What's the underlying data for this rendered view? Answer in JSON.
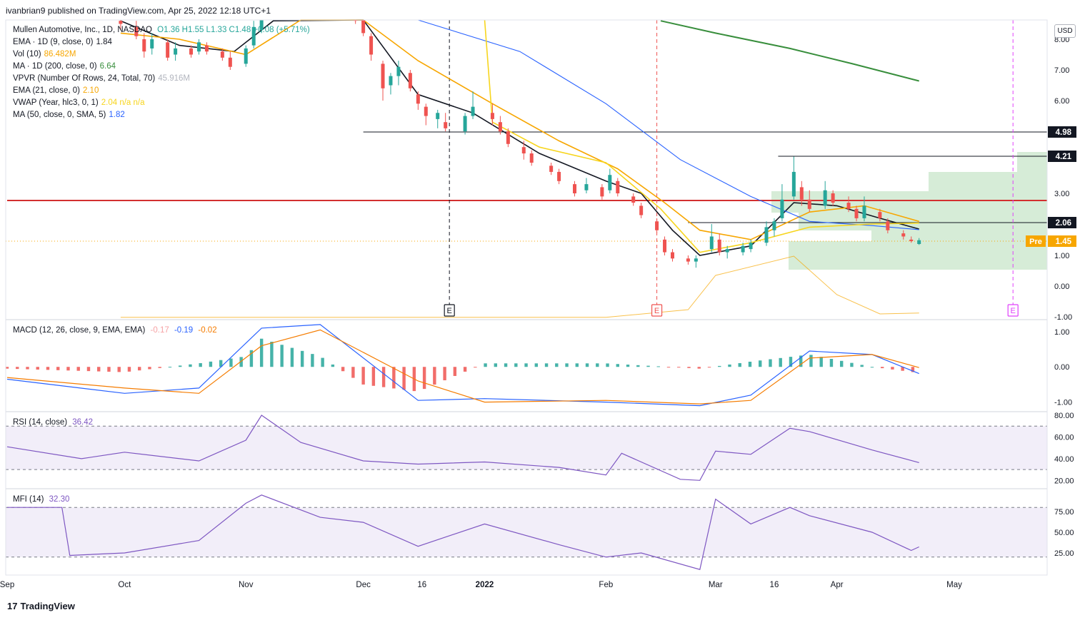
{
  "publisher_line": "ivanbrian9 published on TradingView.com, Apr 25, 2022 12:18 UTC+1",
  "currency_label": "USD",
  "footer_brand": "TradingView",
  "footer_mark": "17",
  "main_legend": {
    "title": "Mullen Automotive, Inc., 1D, NASDAQ",
    "ohlc": "O1.36 H1.55 L1.33 C1.48 +0.08 (+5.71%)",
    "lines": [
      {
        "label": "EMA · 1D (9, close, 0)",
        "value": "1.84",
        "color": "#131722"
      },
      {
        "label": "Vol (10)",
        "value": "86.482M",
        "color": "#f7a600"
      },
      {
        "label": "MA · 1D (200, close, 0)",
        "value": "6.64",
        "color": "#388e3c"
      },
      {
        "label": "VPVR (Number Of Rows, 24, Total, 70)",
        "value": "45.916M",
        "color": "#b2b5be"
      },
      {
        "label": "EMA (21, close, 0)",
        "value": "2.10",
        "color": "#f7a600"
      },
      {
        "label": "VWAP (Year, hlc3, 0, 1)",
        "value": "2.04  n/a  n/a",
        "color": "#f7d51d"
      },
      {
        "label": "MA (50, close, 0, SMA, 5)",
        "value": "1.82",
        "color": "#2962ff"
      }
    ]
  },
  "macd_legend": {
    "label": "MACD (12, 26, close, 9, EMA, EMA)",
    "hist": "-0.17",
    "macd": "-0.19",
    "signal": "-0.02"
  },
  "rsi_legend": {
    "label": "RSI (14, close)",
    "value": "36.42"
  },
  "mfi_legend": {
    "label": "MFI (14)",
    "value": "32.30"
  },
  "colors": {
    "up": "#26a69a",
    "down": "#ef5350",
    "ema9": "#131722",
    "ema21": "#f7a600",
    "ma50": "#2962ff",
    "ma200": "#388e3c",
    "vwap": "#f7d51d",
    "resistance": "#d32f2f",
    "earnings_past": "#ef5350",
    "earnings_future": "#e040fb",
    "osc_band": "#7e57c2",
    "vpvr": "#c8e6c9"
  },
  "chart_data": {
    "type": "candlestick",
    "price_axis": {
      "ticks": [
        "8.00",
        "7.00",
        "6.00",
        "3.00",
        "2.00",
        "1.00",
        "0.00",
        "-1.00"
      ],
      "range": [
        -1.0,
        8.3
      ]
    },
    "time_axis": [
      "Sep",
      "Oct",
      "Nov",
      "Dec",
      "16",
      "2022",
      "Feb",
      "Mar",
      "16",
      "Apr",
      "May"
    ],
    "price_labels": [
      {
        "text": "4.98",
        "value": 4.98
      },
      {
        "text": "4.21",
        "value": 4.21
      },
      {
        "text": "2.06",
        "value": 2.06
      },
      {
        "text": "1.45",
        "value": 1.45,
        "tag": "Pre"
      }
    ],
    "horizontal_lines": [
      {
        "name": "resistance",
        "value": 2.77,
        "from": "Sep",
        "to": "end"
      },
      {
        "name": "level-4.98",
        "value": 4.98,
        "from": "Dec 1",
        "to": "end"
      },
      {
        "name": "level-4.21",
        "value": 4.21,
        "from": "Mar 17",
        "to": "end"
      },
      {
        "name": "level-2.06",
        "value": 2.06,
        "from": "Feb 22",
        "to": "end"
      }
    ],
    "candles": [
      [
        "Sep 30",
        8.6,
        8.9,
        8.3,
        8.5
      ],
      [
        "Oct 4",
        8.4,
        8.6,
        8.0,
        8.1
      ],
      [
        "Oct 6",
        8.0,
        8.2,
        7.4,
        7.6
      ],
      [
        "Oct 8",
        7.7,
        8.2,
        7.5,
        8.0
      ],
      [
        "Oct 12",
        7.9,
        8.0,
        7.3,
        7.4
      ],
      [
        "Oct 14",
        7.5,
        7.9,
        7.3,
        7.7
      ],
      [
        "Oct 18",
        7.7,
        7.8,
        7.4,
        7.5
      ],
      [
        "Oct 20",
        7.6,
        8.0,
        7.5,
        7.9
      ],
      [
        "Oct 22",
        7.8,
        7.9,
        7.5,
        7.6
      ],
      [
        "Oct 26",
        7.6,
        7.7,
        7.3,
        7.4
      ],
      [
        "Oct 28",
        7.4,
        7.6,
        7.0,
        7.1
      ],
      [
        "Nov 1",
        7.2,
        7.8,
        7.1,
        7.7
      ],
      [
        "Nov 3",
        7.8,
        8.6,
        7.7,
        8.4
      ],
      [
        "Nov 5",
        8.3,
        9.0,
        8.2,
        8.8
      ],
      [
        "Nov 29",
        8.9,
        9.1,
        8.5,
        8.6
      ],
      [
        "Dec 1",
        8.7,
        8.8,
        8.1,
        8.2
      ],
      [
        "Dec 3",
        8.1,
        8.2,
        7.3,
        7.5
      ],
      [
        "Dec 6",
        7.2,
        7.3,
        6.0,
        6.4
      ],
      [
        "Dec 8",
        6.5,
        6.9,
        6.2,
        6.8
      ],
      [
        "Dec 10",
        6.8,
        7.3,
        6.5,
        7.1
      ],
      [
        "Dec 13",
        6.9,
        7.0,
        6.3,
        6.4
      ],
      [
        "Dec 15",
        6.2,
        6.3,
        5.7,
        5.9
      ],
      [
        "Dec 17",
        5.8,
        5.9,
        5.2,
        5.5
      ],
      [
        "Dec 20",
        5.4,
        5.7,
        5.1,
        5.6
      ],
      [
        "Dec 22",
        5.3,
        5.6,
        5.0,
        5.1
      ],
      [
        "Dec 27",
        5.0,
        5.6,
        4.9,
        5.5
      ],
      [
        "Dec 29",
        5.5,
        6.3,
        5.4,
        5.8
      ],
      [
        "Jan 3",
        5.6,
        5.9,
        5.2,
        5.4
      ],
      [
        "Jan 5",
        5.3,
        5.5,
        4.9,
        5.0
      ],
      [
        "Jan 7",
        5.0,
        5.1,
        4.5,
        4.6
      ],
      [
        "Jan 11",
        4.5,
        4.7,
        4.1,
        4.3
      ],
      [
        "Jan 13",
        4.3,
        4.4,
        3.9,
        4.0
      ],
      [
        "Jan 18",
        3.9,
        4.0,
        3.6,
        3.7
      ],
      [
        "Jan 20",
        3.7,
        3.8,
        3.3,
        3.4
      ],
      [
        "Jan 24",
        3.3,
        3.4,
        2.9,
        3.0
      ],
      [
        "Jan 27",
        3.1,
        3.5,
        3.0,
        3.3
      ],
      [
        "Jan 31",
        3.2,
        3.3,
        2.8,
        2.9
      ],
      [
        "Feb 2",
        3.1,
        3.8,
        3.0,
        3.6
      ],
      [
        "Feb 4",
        3.4,
        3.5,
        2.9,
        3.0
      ],
      [
        "Feb 8",
        2.9,
        3.0,
        2.6,
        2.7
      ],
      [
        "Feb 10",
        2.6,
        2.7,
        2.2,
        2.3
      ],
      [
        "Feb 14",
        2.1,
        2.2,
        1.7,
        1.8
      ],
      [
        "Feb 16",
        1.5,
        1.6,
        1.0,
        1.1
      ],
      [
        "Feb 18",
        1.1,
        1.2,
        0.8,
        0.9
      ],
      [
        "Feb 22",
        0.9,
        1.0,
        0.7,
        0.8
      ],
      [
        "Feb 24",
        0.8,
        1.0,
        0.6,
        0.9
      ],
      [
        "Feb 28",
        1.2,
        2.0,
        1.1,
        1.6
      ],
      [
        "Mar 2",
        1.5,
        1.7,
        1.0,
        1.1
      ],
      [
        "Mar 4",
        1.1,
        1.3,
        0.9,
        1.2
      ],
      [
        "Mar 8",
        1.1,
        1.4,
        1.0,
        1.3
      ],
      [
        "Mar 10",
        1.2,
        1.5,
        1.1,
        1.4
      ],
      [
        "Mar 14",
        1.4,
        2.1,
        1.3,
        1.9
      ],
      [
        "Mar 16",
        1.8,
        2.2,
        1.6,
        2.1
      ],
      [
        "Mar 18",
        2.2,
        3.3,
        2.1,
        2.8
      ],
      [
        "Mar 21",
        2.9,
        4.2,
        2.8,
        3.7
      ],
      [
        "Mar 23",
        3.2,
        3.4,
        2.6,
        2.8
      ],
      [
        "Mar 25",
        2.8,
        3.1,
        2.4,
        2.5
      ],
      [
        "Mar 29",
        2.6,
        3.4,
        2.5,
        3.1
      ],
      [
        "Mar 31",
        3.0,
        3.1,
        2.6,
        2.7
      ],
      [
        "Apr 4",
        2.7,
        2.9,
        2.4,
        2.5
      ],
      [
        "Apr 6",
        2.5,
        2.6,
        2.1,
        2.2
      ],
      [
        "Apr 8",
        2.2,
        2.9,
        2.1,
        2.6
      ],
      [
        "Apr 12",
        2.4,
        2.5,
        2.1,
        2.2
      ],
      [
        "Apr 14",
        2.1,
        2.2,
        1.7,
        1.8
      ],
      [
        "Apr 18",
        1.7,
        1.8,
        1.5,
        1.6
      ],
      [
        "Apr 20",
        1.5,
        1.6,
        1.4,
        1.45
      ],
      [
        "Apr 22",
        1.36,
        1.55,
        1.33,
        1.48
      ]
    ],
    "series": [
      {
        "name": "EMA · 1D (9, close, 0)",
        "x": [
          "Sep 30",
          "Oct 15",
          "Oct 29",
          "Nov 8",
          "Dec 1",
          "Dec 15",
          "Dec 29",
          "Jan 15",
          "Feb 1",
          "Feb 10",
          "Feb 18",
          "Feb 25",
          "Mar 10",
          "Mar 21",
          "Apr 1",
          "Apr 12",
          "Apr 22"
        ],
        "y": [
          8.6,
          7.8,
          7.6,
          8.6,
          8.7,
          6.2,
          5.6,
          4.3,
          3.4,
          3.0,
          1.8,
          1.0,
          1.3,
          2.7,
          2.6,
          2.2,
          1.84
        ]
      },
      {
        "name": "EMA (21, close, 0)",
        "x": [
          "Sep 30",
          "Oct 15",
          "Nov 1",
          "Nov 15",
          "Dec 1",
          "Dec 15",
          "Jan 3",
          "Jan 20",
          "Feb 4",
          "Feb 16",
          "Feb 25",
          "Mar 10",
          "Mar 25",
          "Apr 8",
          "Apr 22"
        ],
        "y": [
          8.2,
          8.0,
          7.5,
          8.7,
          8.9,
          7.3,
          5.9,
          4.7,
          3.8,
          2.7,
          1.8,
          1.5,
          2.4,
          2.6,
          2.1
        ]
      },
      {
        "name": "MA (50, close, 0, SMA, 5)",
        "x": [
          "Nov 20",
          "Dec 15",
          "Jan 10",
          "Feb 1",
          "Feb 20",
          "Mar 10",
          "Mar 25",
          "Apr 10",
          "Apr 22"
        ],
        "y": [
          10.5,
          9.2,
          7.6,
          5.9,
          4.1,
          2.9,
          2.1,
          1.95,
          1.82
        ]
      },
      {
        "name": "MA · 1D (200, close, 0)",
        "x": [
          "Feb 15",
          "Mar 1",
          "Mar 20",
          "Apr 5",
          "Apr 22"
        ],
        "y": [
          8.6,
          8.2,
          7.7,
          7.2,
          6.64
        ]
      },
      {
        "name": "VWAP (Year, hlc3, 0, 1)",
        "x": [
          "Jan 1",
          "Jan 3",
          "Jan 15",
          "Feb 1",
          "Feb 15",
          "Feb 25",
          "Mar 10",
          "Mar 25",
          "Apr 10",
          "Apr 22"
        ],
        "y": [
          9.0,
          5.3,
          4.5,
          4.0,
          2.5,
          1.1,
          1.4,
          1.9,
          2.0,
          2.04
        ]
      }
    ],
    "volume": {
      "note": "volume drawn as an area along the lower edge of the price pane",
      "x": [
        "Sep 30",
        "Feb 1",
        "Feb 22",
        "Mar 1",
        "Mar 21",
        "Apr 1",
        "Apr 12",
        "Apr 22"
      ],
      "y": [
        0.02,
        0.02,
        0.2,
        1.0,
        1.45,
        0.55,
        0.1,
        0.12
      ]
    },
    "earnings_markers": [
      {
        "date": "Dec 23",
        "label": "E",
        "state": "past"
      },
      {
        "date": "Feb 14",
        "label": "E",
        "state": "past-red"
      },
      {
        "date": "May 16",
        "label": "E",
        "state": "upcoming"
      }
    ],
    "macd": {
      "axis_ticks": [
        "1.00",
        "0.00",
        "-1.00"
      ],
      "range": [
        -1.25,
        1.3
      ],
      "macd_line": {
        "x": [
          "Sep 1",
          "Oct 1",
          "Oct 20",
          "Nov 5",
          "Nov 20",
          "Dec 15",
          "Jan 1",
          "Feb 1",
          "Feb 25",
          "Mar 10",
          "Mar 25",
          "Apr 10",
          "Apr 22"
        ],
        "y": [
          -0.35,
          -0.75,
          -0.6,
          1.1,
          1.2,
          -0.95,
          -0.9,
          -1.0,
          -1.1,
          -0.8,
          0.45,
          0.35,
          -0.19
        ]
      },
      "signal_line": {
        "x": [
          "Sep 1",
          "Oct 1",
          "Oct 20",
          "Nov 5",
          "Nov 20",
          "Dec 15",
          "Jan 1",
          "Feb 1",
          "Feb 25",
          "Mar 10",
          "Mar 25",
          "Apr 10",
          "Apr 22"
        ],
        "y": [
          -0.3,
          -0.6,
          -0.75,
          0.6,
          1.05,
          -0.4,
          -1.0,
          -0.95,
          -1.05,
          -0.95,
          0.25,
          0.35,
          -0.02
        ]
      },
      "histogram": {
        "x": [
          "Sep 1",
          "Oct 1",
          "Oct 20",
          "Nov 1",
          "Nov 5",
          "Nov 20",
          "Dec 1",
          "Dec 15",
          "Jan 1",
          "Feb 1",
          "Feb 25",
          "Mar 10",
          "Mar 25",
          "Apr 10",
          "Apr 22"
        ],
        "y": [
          -0.05,
          -0.15,
          0.1,
          0.3,
          0.8,
          0.3,
          -0.5,
          -0.7,
          0.1,
          0.1,
          -0.05,
          0.15,
          0.35,
          0.0,
          -0.17
        ]
      }
    },
    "rsi": {
      "axis_ticks": [
        "80.00",
        "60.00",
        "40.00",
        "20.00"
      ],
      "band": [
        30,
        70
      ],
      "x": [
        "Sep 1",
        "Sep 20",
        "Oct 1",
        "Oct 20",
        "Nov 1",
        "Nov 5",
        "Nov 15",
        "Dec 1",
        "Dec 15",
        "Jan 1",
        "Jan 20",
        "Feb 1",
        "Feb 5",
        "Feb 20",
        "Feb 25",
        "Mar 1",
        "Mar 10",
        "Mar 20",
        "Mar 25",
        "Apr 10",
        "Apr 22"
      ],
      "y": [
        51,
        40,
        46,
        38,
        57,
        80,
        55,
        38,
        35,
        37,
        32,
        25,
        45,
        21,
        20,
        47,
        44,
        68,
        65,
        48,
        36.42
      ]
    },
    "mfi": {
      "axis_ticks": [
        "75.00",
        "50.00",
        "25.00"
      ],
      "band": [
        20,
        80
      ],
      "x": [
        "Sep 1",
        "Sep 15",
        "Sep 17",
        "Oct 1",
        "Oct 20",
        "Nov 1",
        "Nov 5",
        "Nov 20",
        "Dec 1",
        "Dec 15",
        "Jan 1",
        "Jan 20",
        "Feb 1",
        "Feb 10",
        "Feb 25",
        "Mar 1",
        "Mar 10",
        "Mar 20",
        "Mar 25",
        "Apr 10",
        "Apr 20",
        "Apr 22"
      ],
      "y": [
        80,
        80,
        22,
        25,
        40,
        85,
        95,
        68,
        62,
        33,
        60,
        35,
        20,
        25,
        5,
        90,
        60,
        80,
        70,
        50,
        28,
        32.3
      ]
    }
  }
}
